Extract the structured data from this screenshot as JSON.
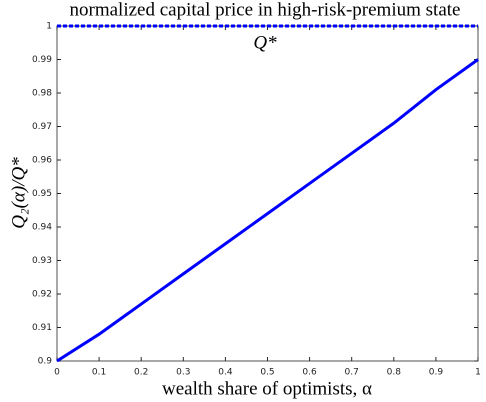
{
  "chart_data": {
    "type": "line",
    "title": "normalized capital price in high-risk-premium state",
    "x_label": "wealth share of optimists, α",
    "y_label": "Q₂(α)/Q*",
    "annotation": "Q*",
    "x": [
      0,
      0.1,
      0.2,
      0.3,
      0.4,
      0.5,
      0.6,
      0.7,
      0.8,
      0.9,
      1
    ],
    "series": [
      {
        "color": "#0000ff",
        "line_style": "solid",
        "values": [
          0.9,
          0.908,
          0.917,
          0.926,
          0.935,
          0.944,
          0.953,
          0.962,
          0.971,
          0.981,
          0.99
        ]
      },
      {
        "color": "#0000ff",
        "line_style": "dashed",
        "values": [
          1,
          1,
          1,
          1,
          1,
          1,
          1,
          1,
          1,
          1,
          1
        ]
      }
    ],
    "xlim": [
      0,
      1
    ],
    "xticks": [
      0,
      0.1,
      0.2,
      0.3,
      0.4,
      0.5,
      0.6,
      0.7,
      0.8,
      0.9,
      1
    ],
    "ylim": [
      0.9,
      1
    ],
    "yticks": [
      0.9,
      0.91,
      0.92,
      0.93,
      0.94,
      0.95,
      0.96,
      0.97,
      0.98,
      0.99,
      1
    ],
    "grid": false
  }
}
